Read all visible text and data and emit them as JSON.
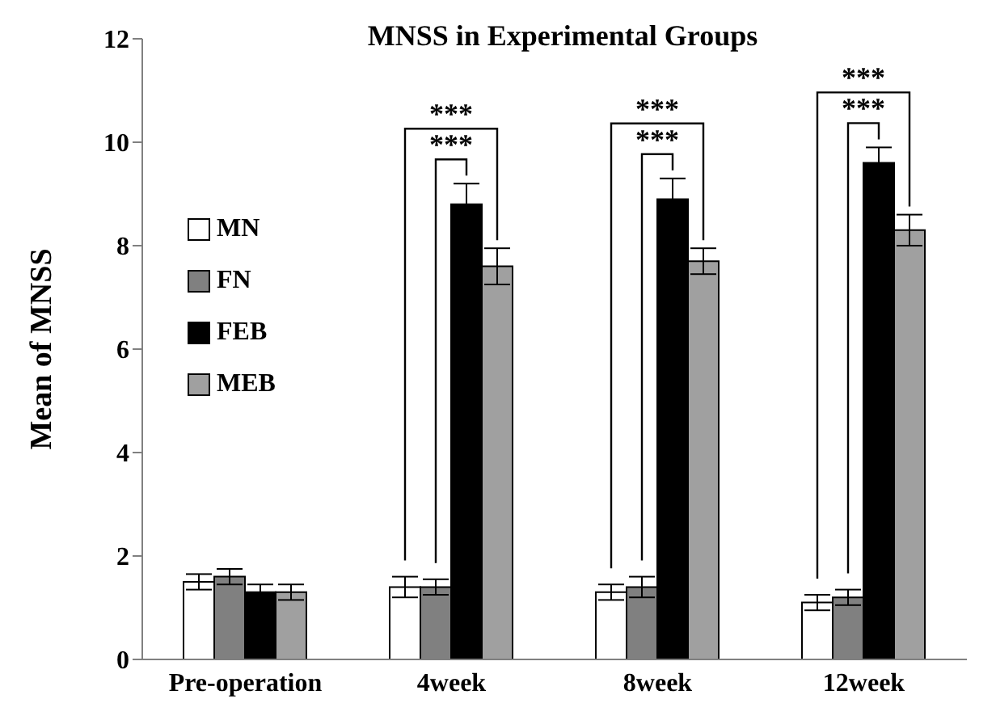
{
  "chart_data": {
    "type": "bar",
    "title": "MNSS in Experimental Groups",
    "ylabel": "Mean of MNSS",
    "categories": [
      "Pre-operation",
      "4week",
      "8week",
      "12week"
    ],
    "series": [
      {
        "name": "MN",
        "color": "#ffffff",
        "values": [
          1.5,
          1.4,
          1.3,
          1.1
        ],
        "errors": [
          0.15,
          0.2,
          0.15,
          0.15
        ]
      },
      {
        "name": "FN",
        "color": "#808080",
        "values": [
          1.6,
          1.4,
          1.4,
          1.2
        ],
        "errors": [
          0.15,
          0.15,
          0.2,
          0.15
        ]
      },
      {
        "name": "FEB",
        "color": "#000000",
        "values": [
          1.3,
          8.8,
          8.9,
          9.6
        ],
        "errors": [
          0.15,
          0.4,
          0.4,
          0.3
        ]
      },
      {
        "name": "MEB",
        "color": "#a0a0a0",
        "values": [
          1.3,
          7.6,
          7.7,
          8.3
        ],
        "errors": [
          0.15,
          0.35,
          0.25,
          0.3
        ]
      }
    ],
    "ylim": [
      0,
      12
    ],
    "yticks": [
      0,
      2,
      4,
      6,
      8,
      10,
      12
    ],
    "grid": false,
    "legend": "top left",
    "annotations": [
      "***",
      "***",
      "***",
      "***",
      "***",
      "***"
    ]
  }
}
